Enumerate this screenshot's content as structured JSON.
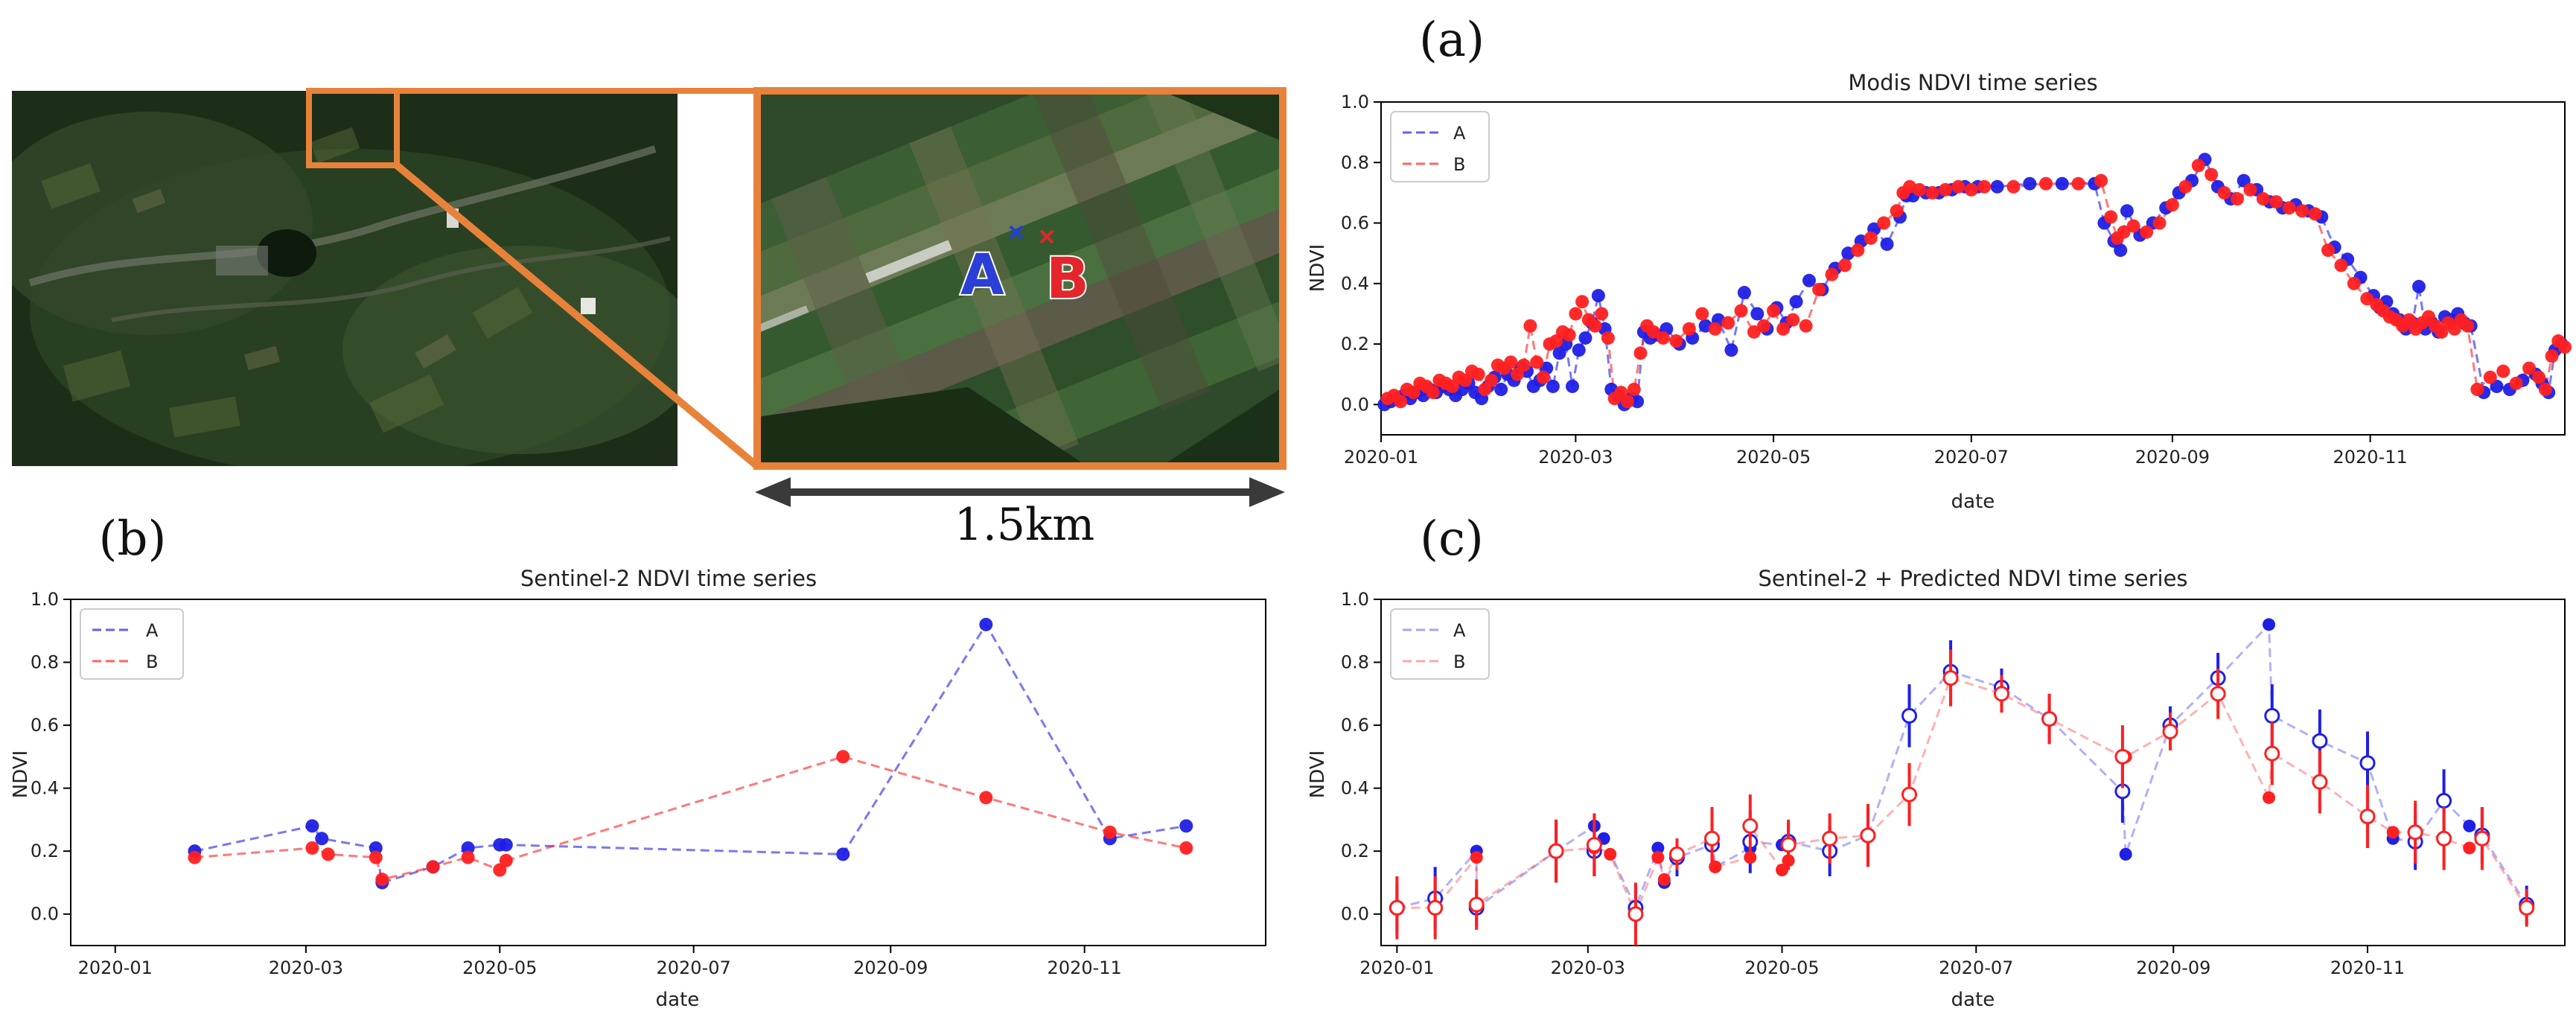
{
  "figure": {
    "panel_letters": [
      "(a)",
      "(b)",
      "(c)"
    ],
    "map": {
      "point_labels": [
        "A",
        "B"
      ],
      "scale_bar_label": "1.5km",
      "colors": {
        "frame": "#e8823a",
        "marker_a": "#1f3fe0",
        "marker_b": "#e3262b"
      }
    }
  },
  "chart_data": [
    {
      "id": "a",
      "type": "line",
      "title": "Modis NDVI time series",
      "xlabel": "date",
      "ylabel": "NDVI",
      "xlim": [
        0,
        365
      ],
      "ylim": [
        -0.1,
        1.0
      ],
      "x_unit": "day of year 2020",
      "xticks": [
        {
          "value": 0,
          "label": "2020-01"
        },
        {
          "value": 60,
          "label": "2020-03"
        },
        {
          "value": 121,
          "label": "2020-05"
        },
        {
          "value": 182,
          "label": "2020-07"
        },
        {
          "value": 244,
          "label": "2020-09"
        },
        {
          "value": 305,
          "label": "2020-11"
        }
      ],
      "yticks": [
        {
          "value": 0.0,
          "label": "0.0"
        },
        {
          "value": 0.2,
          "label": "0.2"
        },
        {
          "value": 0.4,
          "label": "0.4"
        },
        {
          "value": 0.6,
          "label": "0.6"
        },
        {
          "value": 0.8,
          "label": "0.8"
        },
        {
          "value": 1.0,
          "label": "1.0"
        }
      ],
      "legend": {
        "position": "upper-left",
        "entries": [
          "A",
          "B"
        ]
      },
      "series": [
        {
          "name": "A",
          "color": "#1f1fe6",
          "line_style": "dashed",
          "x": [
            1,
            3,
            5,
            7,
            9,
            11,
            13,
            15,
            17,
            19,
            21,
            23,
            25,
            27,
            29,
            31,
            33,
            35,
            37,
            39,
            41,
            43,
            45,
            47,
            49,
            51,
            53,
            55,
            57,
            59,
            61,
            63,
            65,
            67,
            69,
            71,
            73,
            75,
            77,
            79,
            81,
            83,
            85,
            88,
            92,
            96,
            100,
            104,
            108,
            112,
            116,
            119,
            122,
            125,
            128,
            132,
            136,
            140,
            144,
            148,
            152,
            156,
            160,
            162,
            164,
            168,
            172,
            176,
            180,
            184,
            190,
            200,
            210,
            220,
            223,
            226,
            228,
            230,
            234,
            238,
            242,
            246,
            250,
            254,
            258,
            262,
            266,
            270,
            274,
            278,
            282,
            286,
            290,
            294,
            298,
            302,
            306,
            308,
            310,
            312,
            314,
            316,
            318,
            320,
            322,
            324,
            326,
            328,
            330,
            332,
            334,
            336,
            340,
            344,
            348,
            352,
            356,
            358,
            360,
            362,
            364
          ],
          "values": [
            0.0,
            0.01,
            0.02,
            0.03,
            0.02,
            0.04,
            0.03,
            0.05,
            0.04,
            0.06,
            0.05,
            0.03,
            0.05,
            0.07,
            0.04,
            0.02,
            0.06,
            0.09,
            0.05,
            0.1,
            0.08,
            0.12,
            0.11,
            0.06,
            0.08,
            0.12,
            0.06,
            0.17,
            0.2,
            0.06,
            0.18,
            0.22,
            0.27,
            0.36,
            0.25,
            0.05,
            0.03,
            0.0,
            0.02,
            0.01,
            0.24,
            0.22,
            0.23,
            0.25,
            0.2,
            0.22,
            0.26,
            0.28,
            0.18,
            0.37,
            0.3,
            0.25,
            0.32,
            0.27,
            0.34,
            0.41,
            0.38,
            0.45,
            0.5,
            0.54,
            0.58,
            0.53,
            0.62,
            0.69,
            0.69,
            0.7,
            0.7,
            0.71,
            0.72,
            0.72,
            0.72,
            0.73,
            0.73,
            0.73,
            0.6,
            0.54,
            0.51,
            0.64,
            0.56,
            0.6,
            0.65,
            0.7,
            0.74,
            0.81,
            0.72,
            0.68,
            0.74,
            0.71,
            0.67,
            0.65,
            0.66,
            0.64,
            0.62,
            0.52,
            0.48,
            0.42,
            0.36,
            0.32,
            0.34,
            0.3,
            0.28,
            0.25,
            0.27,
            0.39,
            0.25,
            0.27,
            0.24,
            0.29,
            0.28,
            0.3,
            0.27,
            0.26,
            0.04,
            0.06,
            0.05,
            0.08,
            0.1,
            0.07,
            0.04,
            0.18,
            0.2
          ]
        },
        {
          "name": "B",
          "color": "#ff2020",
          "line_style": "dashed",
          "x": [
            2,
            4,
            6,
            8,
            10,
            12,
            14,
            16,
            18,
            20,
            22,
            24,
            26,
            28,
            30,
            32,
            34,
            36,
            38,
            40,
            42,
            44,
            46,
            48,
            50,
            52,
            54,
            56,
            58,
            60,
            62,
            64,
            66,
            68,
            70,
            72,
            74,
            76,
            78,
            80,
            82,
            84,
            87,
            91,
            95,
            99,
            103,
            107,
            111,
            115,
            118,
            121,
            124,
            127,
            131,
            135,
            139,
            143,
            147,
            151,
            155,
            159,
            161,
            163,
            166,
            170,
            174,
            178,
            182,
            186,
            195,
            205,
            215,
            222,
            225,
            227,
            229,
            232,
            236,
            240,
            244,
            248,
            252,
            256,
            260,
            264,
            268,
            272,
            276,
            280,
            284,
            288,
            292,
            296,
            300,
            304,
            307,
            309,
            311,
            313,
            315,
            317,
            319,
            321,
            323,
            325,
            327,
            329,
            331,
            333,
            335,
            338,
            342,
            346,
            350,
            354,
            357,
            359,
            361,
            363,
            365
          ],
          "values": [
            0.02,
            0.03,
            0.01,
            0.05,
            0.04,
            0.07,
            0.06,
            0.04,
            0.08,
            0.07,
            0.06,
            0.09,
            0.08,
            0.11,
            0.1,
            0.05,
            0.08,
            0.13,
            0.12,
            0.14,
            0.1,
            0.13,
            0.26,
            0.14,
            0.09,
            0.2,
            0.21,
            0.24,
            0.23,
            0.3,
            0.34,
            0.28,
            0.26,
            0.3,
            0.22,
            0.02,
            0.04,
            0.01,
            0.05,
            0.17,
            0.26,
            0.24,
            0.22,
            0.21,
            0.25,
            0.3,
            0.25,
            0.27,
            0.31,
            0.24,
            0.26,
            0.31,
            0.25,
            0.28,
            0.26,
            0.38,
            0.43,
            0.46,
            0.51,
            0.55,
            0.6,
            0.64,
            0.7,
            0.72,
            0.71,
            0.7,
            0.71,
            0.72,
            0.71,
            0.72,
            0.72,
            0.73,
            0.73,
            0.74,
            0.62,
            0.55,
            0.57,
            0.59,
            0.57,
            0.6,
            0.66,
            0.72,
            0.79,
            0.76,
            0.7,
            0.68,
            0.71,
            0.68,
            0.67,
            0.65,
            0.64,
            0.63,
            0.51,
            0.46,
            0.4,
            0.35,
            0.33,
            0.31,
            0.29,
            0.28,
            0.26,
            0.28,
            0.25,
            0.27,
            0.29,
            0.26,
            0.24,
            0.27,
            0.25,
            0.28,
            0.26,
            0.05,
            0.09,
            0.11,
            0.07,
            0.12,
            0.09,
            0.05,
            0.16,
            0.21,
            0.19
          ]
        }
      ]
    },
    {
      "id": "b",
      "type": "line",
      "title": "Sentinel-2 NDVI time series",
      "xlabel": "date",
      "ylabel": "NDVI",
      "xlim": [
        -14,
        362
      ],
      "ylim": [
        -0.1,
        1.0
      ],
      "x_unit": "day of year 2020",
      "xticks": [
        {
          "value": 0,
          "label": "2020-01"
        },
        {
          "value": 60,
          "label": "2020-03"
        },
        {
          "value": 121,
          "label": "2020-05"
        },
        {
          "value": 182,
          "label": "2020-07"
        },
        {
          "value": 244,
          "label": "2020-09"
        },
        {
          "value": 305,
          "label": "2020-11"
        }
      ],
      "yticks": [
        {
          "value": 0.0,
          "label": "0.0"
        },
        {
          "value": 0.2,
          "label": "0.2"
        },
        {
          "value": 0.4,
          "label": "0.4"
        },
        {
          "value": 0.6,
          "label": "0.6"
        },
        {
          "value": 0.8,
          "label": "0.8"
        },
        {
          "value": 1.0,
          "label": "1.0"
        }
      ],
      "legend": {
        "position": "upper-left",
        "entries": [
          "A",
          "B"
        ]
      },
      "series": [
        {
          "name": "A",
          "color": "#1f1fe6",
          "line_style": "dashed",
          "x": [
            25,
            62,
            65,
            82,
            84,
            100,
            111,
            121,
            123,
            229,
            274,
            313,
            337
          ],
          "values": [
            0.2,
            0.28,
            0.24,
            0.21,
            0.1,
            0.15,
            0.21,
            0.22,
            0.22,
            0.19,
            0.92,
            0.24,
            0.28
          ]
        },
        {
          "name": "B",
          "color": "#ff2020",
          "line_style": "dashed",
          "x": [
            25,
            62,
            67,
            82,
            84,
            100,
            111,
            121,
            123,
            229,
            274,
            313,
            337
          ],
          "values": [
            0.18,
            0.21,
            0.19,
            0.18,
            0.11,
            0.15,
            0.18,
            0.14,
            0.17,
            0.5,
            0.37,
            0.26,
            0.21
          ]
        }
      ]
    },
    {
      "id": "c",
      "type": "line",
      "title": "Sentinel-2 + Predicted NDVI time series",
      "xlabel": "date",
      "ylabel": "NDVI",
      "xlim": [
        -5,
        367
      ],
      "ylim": [
        -0.1,
        1.0
      ],
      "x_unit": "day of year 2020",
      "xticks": [
        {
          "value": 0,
          "label": "2020-01"
        },
        {
          "value": 60,
          "label": "2020-03"
        },
        {
          "value": 121,
          "label": "2020-05"
        },
        {
          "value": 182,
          "label": "2020-07"
        },
        {
          "value": 244,
          "label": "2020-09"
        },
        {
          "value": 305,
          "label": "2020-11"
        }
      ],
      "yticks": [
        {
          "value": 0.0,
          "label": "0.0"
        },
        {
          "value": 0.2,
          "label": "0.2"
        },
        {
          "value": 0.4,
          "label": "0.4"
        },
        {
          "value": 0.6,
          "label": "0.6"
        },
        {
          "value": 0.8,
          "label": "0.8"
        },
        {
          "value": 1.0,
          "label": "1.0"
        }
      ],
      "legend": {
        "position": "upper-left",
        "entries": [
          "A",
          "B"
        ]
      },
      "series": [
        {
          "name": "A",
          "color": "#1f1fe6",
          "line_style": "dashed",
          "observed": {
            "x": [
              25,
              62,
              65,
              82,
              84,
              100,
              111,
              121,
              123,
              229,
              274,
              313,
              337
            ],
            "values": [
              0.2,
              0.28,
              0.24,
              0.21,
              0.1,
              0.15,
              0.21,
              0.22,
              0.22,
              0.19,
              0.92,
              0.24,
              0.28
            ]
          },
          "predicted": {
            "x": [
              0,
              12,
              25,
              50,
              62,
              75,
              88,
              99,
              111,
              123,
              136,
              148,
              161,
              174,
              190,
              205,
              228,
              243,
              258,
              275,
              290,
              305,
              320,
              329,
              341,
              355
            ],
            "values": [
              0.02,
              0.05,
              0.02,
              0.2,
              0.2,
              0.02,
              0.18,
              0.22,
              0.23,
              0.23,
              0.2,
              0.25,
              0.63,
              0.77,
              0.72,
              0.62,
              0.39,
              0.6,
              0.75,
              0.63,
              0.55,
              0.48,
              0.23,
              0.36,
              0.25,
              0.03
            ],
            "error": [
              0.08,
              0.1,
              0.06,
              0.1,
              0.08,
              0.07,
              0.06,
              0.08,
              0.1,
              0.06,
              0.08,
              0.09,
              0.1,
              0.1,
              0.06,
              0.08,
              0.1,
              0.06,
              0.08,
              0.1,
              0.1,
              0.1,
              0.09,
              0.1,
              0.09,
              0.06
            ]
          }
        },
        {
          "name": "B",
          "color": "#ff2020",
          "line_style": "dashed",
          "observed": {
            "x": [
              25,
              62,
              67,
              82,
              84,
              100,
              111,
              121,
              123,
              229,
              274,
              313,
              337
            ],
            "values": [
              0.18,
              0.21,
              0.19,
              0.18,
              0.11,
              0.15,
              0.18,
              0.14,
              0.17,
              0.5,
              0.37,
              0.26,
              0.21
            ]
          },
          "predicted": {
            "x": [
              0,
              12,
              25,
              50,
              62,
              75,
              88,
              99,
              111,
              123,
              136,
              148,
              161,
              174,
              190,
              205,
              228,
              243,
              258,
              275,
              290,
              305,
              320,
              329,
              341,
              355
            ],
            "values": [
              0.02,
              0.02,
              0.03,
              0.2,
              0.22,
              0.0,
              0.19,
              0.24,
              0.28,
              0.22,
              0.24,
              0.25,
              0.38,
              0.75,
              0.7,
              0.62,
              0.5,
              0.58,
              0.7,
              0.51,
              0.42,
              0.31,
              0.26,
              0.24,
              0.24,
              0.02
            ],
            "error": [
              0.1,
              0.1,
              0.08,
              0.1,
              0.1,
              0.1,
              0.05,
              0.1,
              0.1,
              0.08,
              0.08,
              0.1,
              0.1,
              0.09,
              0.06,
              0.08,
              0.1,
              0.06,
              0.08,
              0.1,
              0.1,
              0.1,
              0.1,
              0.1,
              0.1,
              0.06
            ]
          }
        }
      ]
    }
  ]
}
